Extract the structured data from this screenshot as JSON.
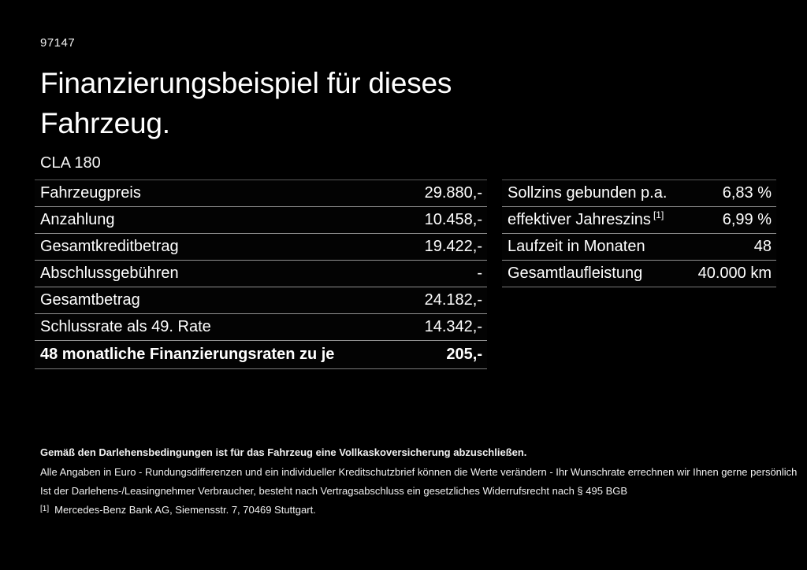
{
  "meta": {
    "doc_number": "97147"
  },
  "header": {
    "title": "Finanzierungsbeispiel für dieses Fahrzeug.",
    "model": "CLA 180"
  },
  "finance_table": {
    "rows": [
      {
        "label": "Fahrzeugpreis",
        "value": "29.880,-"
      },
      {
        "label": "Anzahlung",
        "value": "10.458,-"
      },
      {
        "label": "Gesamtkreditbetrag",
        "value": "19.422,-"
      },
      {
        "label": "Abschlussgebühren",
        "value": "-"
      },
      {
        "label": "Gesamtbetrag",
        "value": "24.182,-"
      },
      {
        "label": "Schlussrate als 49. Rate",
        "value": "14.342,-"
      },
      {
        "label": "48 monatliche Finanzierungsraten zu je",
        "value": "205,-"
      }
    ]
  },
  "conditions_table": {
    "rows": [
      {
        "label": "Sollzins gebunden p.a.",
        "value": "6,83 %"
      },
      {
        "label": "effektiver Jahreszins",
        "label_sup": "[1]",
        "value": "6,99 %"
      },
      {
        "label": "Laufzeit in Monaten",
        "value": "48"
      },
      {
        "label": "Gesamtlaufleistung",
        "value": "40.000 km"
      }
    ]
  },
  "notes": {
    "insurance_bold": "Gemäß den Darlehensbedingungen ist für das Fahrzeug eine Vollkaskoversicherung abzuschließen.",
    "disclaimer_line1": "Alle Angaben in Euro - Rundungsdifferenzen und ein individueller Kreditschutzbrief können die Werte verändern - Ihr Wunschrate errechnen wir Ihnen gerne persönlich",
    "disclaimer_line2": "Ist der Darlehens-/Leasingnehmer Verbraucher, besteht nach Vertragsabschluss ein gesetzliches Widerrufsrecht nach § 495 BGB",
    "footnote_marker": "[1]",
    "footnote_text": "Mercedes-Benz Bank AG, Siemensstr. 7, 70469 Stuttgart."
  },
  "colors": {
    "background": "#000000",
    "text": "#ffffff",
    "divider": "#909090"
  }
}
